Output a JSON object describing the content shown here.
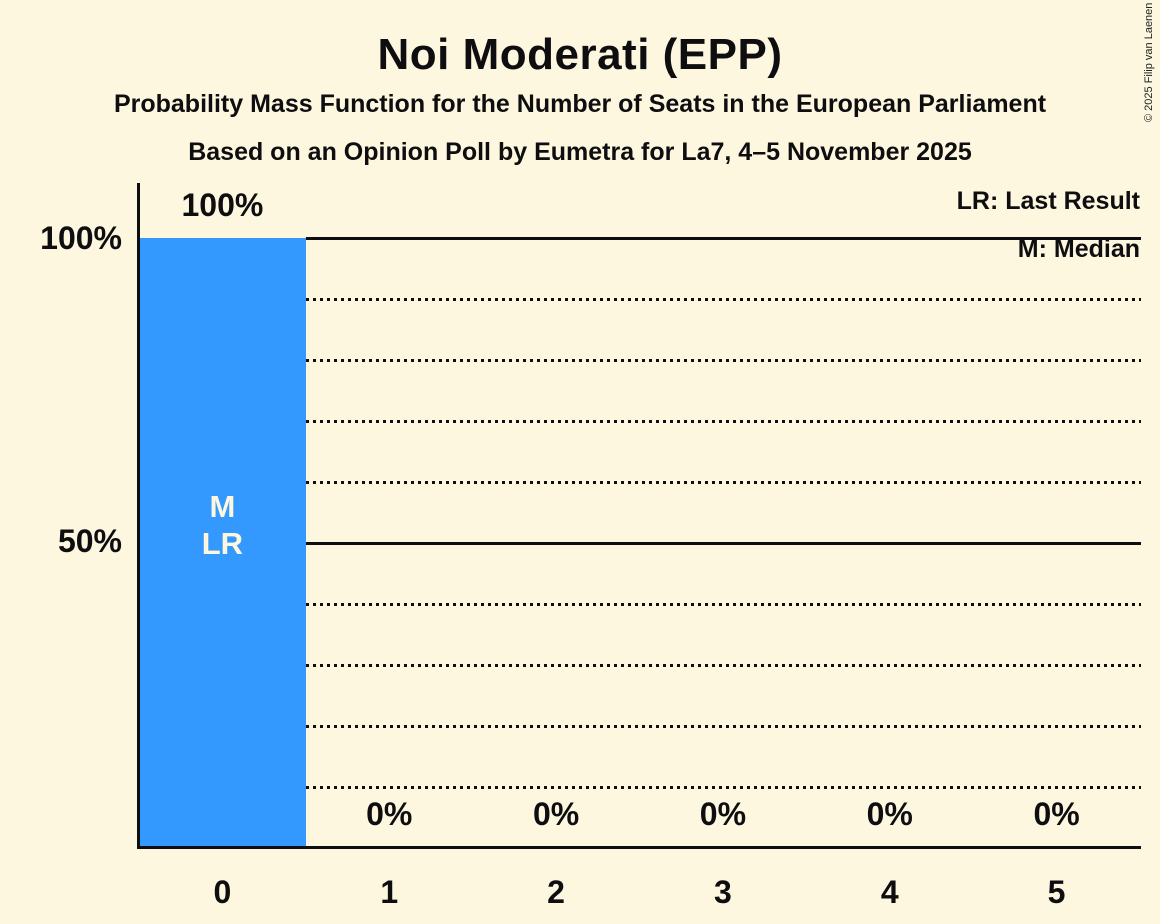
{
  "title": "Noi Moderati (EPP)",
  "subtitles": [
    "Probability Mass Function for the Number of Seats in the European Parliament",
    "Based on an Opinion Poll by Eumetra for La7, 4–5 November 2025"
  ],
  "copyright": "© 2025 Filip van Laenen",
  "legend": {
    "lr": "LR: Last Result",
    "m": "M: Median"
  },
  "colors": {
    "background": "#FDF7DF",
    "bar": "#3399FF",
    "text": "#0E0E10",
    "bar_label_text": "#FDF7DF"
  },
  "chart_data": {
    "type": "bar",
    "categories": [
      "0",
      "1",
      "2",
      "3",
      "4",
      "5"
    ],
    "values": [
      100,
      0,
      0,
      0,
      0,
      0
    ],
    "value_labels": [
      "100%",
      "0%",
      "0%",
      "0%",
      "0%",
      "0%"
    ],
    "title": "Noi Moderati (EPP)",
    "xlabel": "",
    "ylabel": "",
    "ylim": [
      0,
      100
    ],
    "yticks": [
      {
        "value": 100,
        "label": "100%"
      },
      {
        "value": 50,
        "label": "50%"
      }
    ],
    "gridlines_solid": [
      100,
      50
    ],
    "gridlines_dotted": [
      90,
      80,
      70,
      60,
      40,
      30,
      20,
      10
    ],
    "median": {
      "seat": 0,
      "label": "M"
    },
    "last_result": {
      "seat": 0,
      "label": "LR"
    },
    "legend_position": "top-right",
    "grid": "horizontal-dotted"
  }
}
